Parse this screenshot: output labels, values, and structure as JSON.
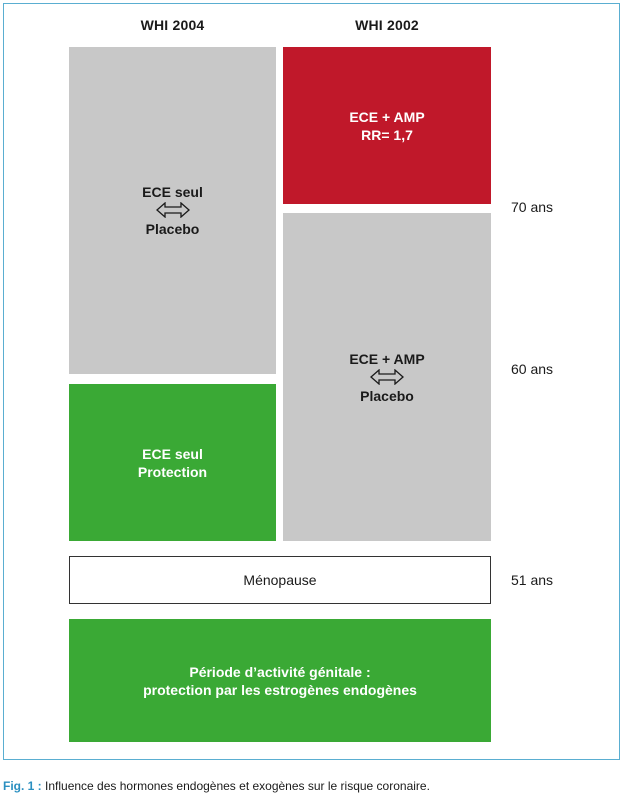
{
  "columns": {
    "left_header": "WHI 2004",
    "right_header": "WHI 2002"
  },
  "boxes": {
    "ece_alone_vs_placebo": {
      "line1": "ECE seul",
      "line2": "Placebo"
    },
    "ece_alone_protection": {
      "line1": "ECE seul",
      "line2": "Protection"
    },
    "ece_amp_rr": {
      "line1": "ECE + AMP",
      "line2": "RR= 1,7"
    },
    "ece_amp_vs_placebo": {
      "line1": "ECE + AMP",
      "line2": "Placebo"
    },
    "menopause": {
      "label": "Ménopause"
    },
    "genital_activity": {
      "line1": "Période d’activité génitale :",
      "line2": "protection par les estrogènes endogènes"
    }
  },
  "ages": {
    "age_70": "70 ans",
    "age_60": "60 ans",
    "age_51": "51 ans"
  },
  "caption": {
    "label": "Fig. 1 :",
    "text": " Influence des hormones endogènes et exogènes sur le risque coronaire."
  },
  "colors": {
    "gray": "#c8c8c8",
    "red": "#c0182a",
    "green": "#3aa935",
    "frame_border": "#5aaed1",
    "caption_label": "#2a8fc0"
  },
  "icons": {
    "comparison": "double-arrow-icon"
  }
}
